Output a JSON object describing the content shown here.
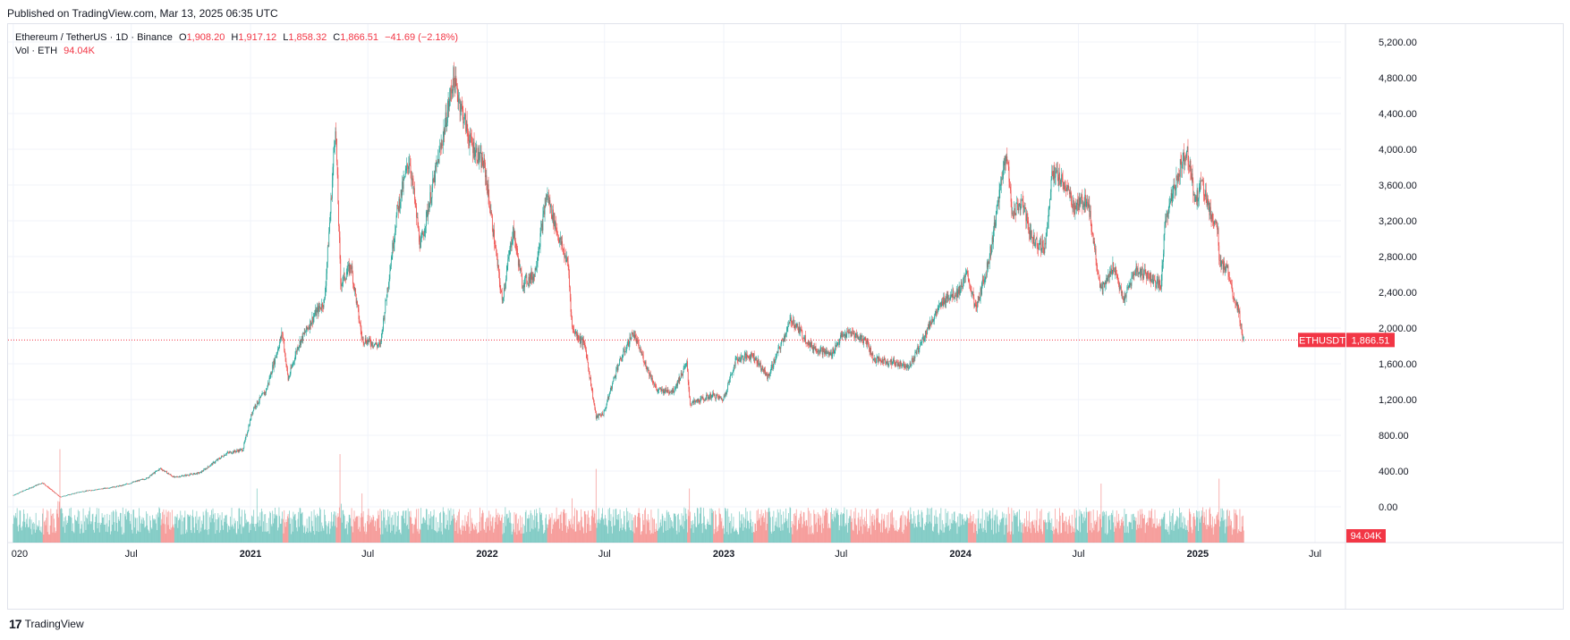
{
  "header": {
    "published": "Published on TradingView.com, Mar 13, 2025 06:35 UTC"
  },
  "legend": {
    "symbol": "Ethereum / TetherUS · 1D · Binance",
    "open_key": "O",
    "open": "1,908.20",
    "high_key": "H",
    "high": "1,917.12",
    "low_key": "L",
    "low": "1,858.32",
    "close_key": "C",
    "close": "1,866.51",
    "change": "−41.69 (−2.18%)",
    "vol_label": "Vol · ETH",
    "vol_value": "94.04K"
  },
  "price_tag": {
    "ticker": "ETHUSDT",
    "price": "1,866.51"
  },
  "volume_tag": "94.04K",
  "footer": {
    "brand": "TradingView",
    "logo_glyph": "17"
  },
  "colors": {
    "up": "#26a69a",
    "down": "#ef5350",
    "last_price": "#f23645",
    "grid": "#f0f3fa"
  },
  "chart_data": {
    "type": "candlestick",
    "title": "Ethereum / TetherUS · 1D · Binance",
    "xlabel": "",
    "ylabel": "",
    "ylim": [
      -400,
      5400
    ],
    "y_ticks": [
      "5,200.00",
      "4,800.00",
      "4,400.00",
      "4,000.00",
      "3,600.00",
      "3,200.00",
      "2,800.00",
      "2,400.00",
      "2,000.00",
      "1,600.00",
      "1,200.00",
      "800.00",
      "400.00",
      "0.00"
    ],
    "y_tick_values": [
      5200,
      4800,
      4400,
      4000,
      3600,
      3200,
      2800,
      2400,
      2000,
      1600,
      1200,
      800,
      400,
      0
    ],
    "x_ticks": [
      {
        "label": "020",
        "date": "2020-01-01"
      },
      {
        "label": "Jul",
        "date": "2020-07-01"
      },
      {
        "label": "2021",
        "date": "2021-01-01"
      },
      {
        "label": "Jul",
        "date": "2021-07-01"
      },
      {
        "label": "2022",
        "date": "2022-01-01"
      },
      {
        "label": "Jul",
        "date": "2022-07-01"
      },
      {
        "label": "2023",
        "date": "2023-01-01"
      },
      {
        "label": "Jul",
        "date": "2023-07-01"
      },
      {
        "label": "2024",
        "date": "2024-01-01"
      },
      {
        "label": "Jul",
        "date": "2024-07-01"
      },
      {
        "label": "2025",
        "date": "2025-01-01"
      },
      {
        "label": "Jul",
        "date": "2025-07-01"
      }
    ],
    "x_range": [
      "2019-12-24",
      "2025-08-10"
    ],
    "last_price": 1866.51,
    "series": [
      {
        "name": "ETHUSDT",
        "note": "approximate daily close anchor points",
        "points": [
          [
            "2020-01-01",
            130
          ],
          [
            "2020-02-15",
            270
          ],
          [
            "2020-03-13",
            110
          ],
          [
            "2020-04-15",
            170
          ],
          [
            "2020-05-15",
            200
          ],
          [
            "2020-06-15",
            235
          ],
          [
            "2020-07-25",
            320
          ],
          [
            "2020-08-15",
            430
          ],
          [
            "2020-09-05",
            330
          ],
          [
            "2020-10-15",
            380
          ],
          [
            "2020-11-25",
            600
          ],
          [
            "2020-12-20",
            640
          ],
          [
            "2021-01-05",
            1100
          ],
          [
            "2021-01-25",
            1300
          ],
          [
            "2021-02-19",
            1950
          ],
          [
            "2021-02-28",
            1420
          ],
          [
            "2021-03-15",
            1800
          ],
          [
            "2021-04-10",
            2150
          ],
          [
            "2021-04-25",
            2300
          ],
          [
            "2021-05-05",
            3400
          ],
          [
            "2021-05-12",
            4300
          ],
          [
            "2021-05-20",
            2500
          ],
          [
            "2021-06-05",
            2700
          ],
          [
            "2021-06-22",
            1880
          ],
          [
            "2021-07-20",
            1800
          ],
          [
            "2021-08-15",
            3300
          ],
          [
            "2021-09-03",
            3900
          ],
          [
            "2021-09-20",
            2900
          ],
          [
            "2021-10-05",
            3450
          ],
          [
            "2021-10-25",
            4150
          ],
          [
            "2021-11-10",
            4800
          ],
          [
            "2021-11-28",
            4300
          ],
          [
            "2021-12-05",
            4100
          ],
          [
            "2021-12-28",
            3800
          ],
          [
            "2022-01-10",
            3100
          ],
          [
            "2022-01-24",
            2300
          ],
          [
            "2022-02-10",
            3100
          ],
          [
            "2022-02-24",
            2500
          ],
          [
            "2022-03-15",
            2600
          ],
          [
            "2022-04-03",
            3500
          ],
          [
            "2022-04-20",
            3050
          ],
          [
            "2022-05-06",
            2700
          ],
          [
            "2022-05-12",
            2000
          ],
          [
            "2022-06-01",
            1800
          ],
          [
            "2022-06-18",
            1000
          ],
          [
            "2022-06-30",
            1050
          ],
          [
            "2022-07-20",
            1550
          ],
          [
            "2022-08-14",
            1950
          ],
          [
            "2022-09-05",
            1550
          ],
          [
            "2022-09-20",
            1300
          ],
          [
            "2022-10-15",
            1300
          ],
          [
            "2022-11-05",
            1600
          ],
          [
            "2022-11-10",
            1150
          ],
          [
            "2022-12-15",
            1250
          ],
          [
            "2022-12-31",
            1200
          ],
          [
            "2023-01-20",
            1650
          ],
          [
            "2023-02-15",
            1700
          ],
          [
            "2023-03-10",
            1450
          ],
          [
            "2023-04-01",
            1850
          ],
          [
            "2023-04-15",
            2100
          ],
          [
            "2023-05-15",
            1800
          ],
          [
            "2023-06-15",
            1700
          ],
          [
            "2023-07-01",
            1900
          ],
          [
            "2023-07-15",
            1950
          ],
          [
            "2023-08-10",
            1850
          ],
          [
            "2023-08-20",
            1650
          ],
          [
            "2023-09-15",
            1620
          ],
          [
            "2023-10-15",
            1580
          ],
          [
            "2023-10-30",
            1800
          ],
          [
            "2023-11-15",
            2050
          ],
          [
            "2023-12-10",
            2350
          ],
          [
            "2023-12-28",
            2400
          ],
          [
            "2024-01-12",
            2600
          ],
          [
            "2024-01-25",
            2200
          ],
          [
            "2024-02-15",
            2800
          ],
          [
            "2024-02-28",
            3400
          ],
          [
            "2024-03-12",
            4000
          ],
          [
            "2024-03-20",
            3300
          ],
          [
            "2024-04-05",
            3400
          ],
          [
            "2024-04-20",
            3000
          ],
          [
            "2024-05-10",
            2900
          ],
          [
            "2024-05-22",
            3750
          ],
          [
            "2024-06-10",
            3600
          ],
          [
            "2024-06-25",
            3350
          ],
          [
            "2024-07-15",
            3450
          ],
          [
            "2024-08-05",
            2400
          ],
          [
            "2024-08-25",
            2700
          ],
          [
            "2024-09-08",
            2300
          ],
          [
            "2024-09-27",
            2650
          ],
          [
            "2024-10-15",
            2600
          ],
          [
            "2024-11-05",
            2450
          ],
          [
            "2024-11-12",
            3200
          ],
          [
            "2024-12-05",
            3800
          ],
          [
            "2024-12-16",
            4000
          ],
          [
            "2024-12-28",
            3400
          ],
          [
            "2025-01-07",
            3650
          ],
          [
            "2025-01-20",
            3300
          ],
          [
            "2025-02-01",
            3100
          ],
          [
            "2025-02-03",
            2700
          ],
          [
            "2025-02-15",
            2700
          ],
          [
            "2025-02-26",
            2350
          ],
          [
            "2025-03-05",
            2200
          ],
          [
            "2025-03-10",
            1950
          ],
          [
            "2025-03-13",
            1866
          ]
        ]
      },
      {
        "name": "Vol · ETH",
        "note": "daily volume, relative height (0-1) of pane",
        "spikes": [
          [
            "2020-03-13",
            0.95
          ],
          [
            "2021-01-11",
            0.55
          ],
          [
            "2021-05-19",
            0.9
          ],
          [
            "2021-06-22",
            0.5
          ],
          [
            "2022-05-12",
            0.45
          ],
          [
            "2022-06-18",
            0.75
          ],
          [
            "2022-11-09",
            0.55
          ],
          [
            "2024-08-05",
            0.6
          ],
          [
            "2025-02-03",
            0.65
          ]
        ]
      }
    ]
  }
}
